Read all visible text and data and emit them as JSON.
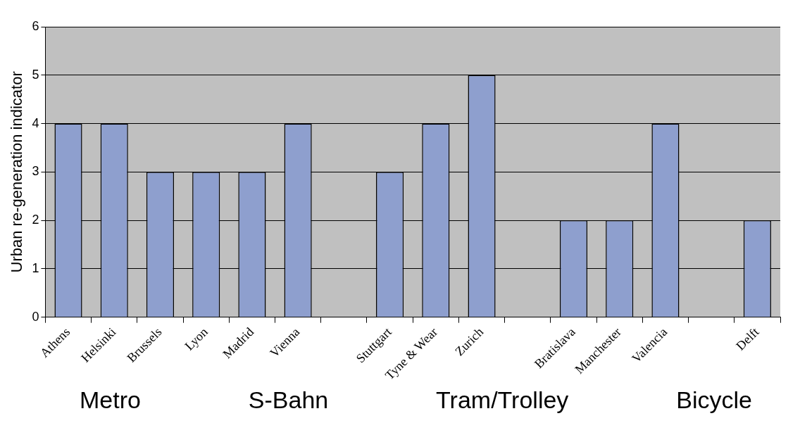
{
  "chart_data": {
    "type": "bar",
    "ylabel": "Urban re-generation indicator",
    "categories": [
      "Athens",
      "Helsinki",
      "Brussels",
      "Lyon",
      "Madrid",
      "Vienna",
      null,
      "Stuttgart",
      "Tyne & Wear",
      "Zurich",
      null,
      "Bratislava",
      "Manchester",
      "Valencia",
      null,
      "Delft"
    ],
    "values": [
      4,
      4,
      3,
      3,
      3,
      4,
      null,
      3,
      4,
      5,
      null,
      2,
      2,
      4,
      null,
      2
    ],
    "color": "#8e9fce",
    "ylim": [
      0,
      6
    ],
    "yticks": [
      0,
      1,
      2,
      3,
      4,
      5,
      6
    ],
    "grid": "y",
    "legend": false,
    "annotations": [
      "Metro",
      "S-Bahn",
      "Tram/Trolley",
      "Bicycle"
    ]
  }
}
